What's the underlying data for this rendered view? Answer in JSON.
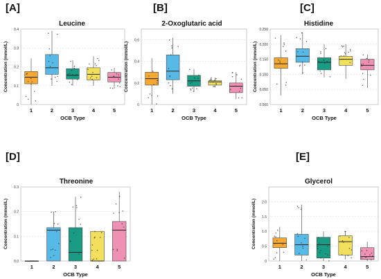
{
  "panels": [
    {
      "label": "[A]",
      "title": "Leucine"
    },
    {
      "label": "[B]",
      "title": "2-Oxoglutaric acid"
    },
    {
      "label": "[C]",
      "title": "Histidine"
    },
    {
      "label": "[D]",
      "title": "Threonine"
    },
    {
      "label": "[E]",
      "title": "Glycerol"
    }
  ],
  "chart_data": [
    {
      "type": "box",
      "title": "Leucine",
      "xlabel": "OCB Type",
      "ylabel": "Concentration (mmol/L)",
      "categories": [
        "1",
        "2",
        "3",
        "4",
        "5"
      ],
      "ylim": [
        0,
        0.4
      ],
      "yticks": [
        0,
        0.1,
        0.2,
        0.3,
        0.4
      ],
      "ytick_labels": [
        "0",
        "0.1",
        "0.2",
        "0.3",
        "0.4"
      ],
      "boxes": [
        {
          "q1": 0.11,
          "median": 0.145,
          "q3": 0.175,
          "whisker_low": 0.0,
          "whisker_high": 0.245
        },
        {
          "q1": 0.16,
          "median": 0.195,
          "q3": 0.265,
          "whisker_low": 0.1,
          "whisker_high": 0.39
        },
        {
          "q1": 0.135,
          "median": 0.155,
          "q3": 0.19,
          "whisker_low": 0.1,
          "whisker_high": 0.235
        },
        {
          "q1": 0.13,
          "median": 0.16,
          "q3": 0.195,
          "whisker_low": 0.1,
          "whisker_high": 0.255
        },
        {
          "q1": 0.12,
          "median": 0.145,
          "q3": 0.17,
          "whisker_low": 0.085,
          "whisker_high": 0.195
        }
      ],
      "colors": [
        "#f5a933",
        "#57b9e6",
        "#1a9b83",
        "#f2e05c",
        "#ef90b5"
      ]
    },
    {
      "type": "box",
      "title": "2-Oxoglutaric acid",
      "xlabel": "OCB Type",
      "ylabel": "Concentration (mmol/L)",
      "categories": [
        "1",
        "2",
        "3",
        "4",
        "5"
      ],
      "ylim": [
        0,
        0.7
      ],
      "yticks": [
        0,
        0.2,
        0.4,
        0.6
      ],
      "ytick_labels": [
        "0",
        "0.2",
        "0.4",
        "0.6"
      ],
      "boxes": [
        {
          "q1": 0.18,
          "median": 0.24,
          "q3": 0.3,
          "whisker_low": 0.0,
          "whisker_high": 0.43
        },
        {
          "q1": 0.23,
          "median": 0.31,
          "q3": 0.46,
          "whisker_low": 0.1,
          "whisker_high": 0.62
        },
        {
          "q1": 0.17,
          "median": 0.22,
          "q3": 0.27,
          "whisker_low": 0.12,
          "whisker_high": 0.33
        },
        {
          "q1": 0.18,
          "median": 0.21,
          "q3": 0.22,
          "whisker_low": 0.16,
          "whisker_high": 0.25
        },
        {
          "q1": 0.11,
          "median": 0.17,
          "q3": 0.2,
          "whisker_low": 0.05,
          "whisker_high": 0.3
        }
      ],
      "colors": [
        "#f5a933",
        "#57b9e6",
        "#1a9b83",
        "#f2e05c",
        "#ef90b5"
      ]
    },
    {
      "type": "box",
      "title": "Histidine",
      "xlabel": "OCB Type",
      "ylabel": "Concentration (mmol/L)",
      "categories": [
        "1",
        "2",
        "3",
        "4",
        "5"
      ],
      "ylim": [
        0,
        0.25
      ],
      "yticks": [
        0,
        0.05,
        0.1,
        0.15,
        0.2,
        0.25
      ],
      "ytick_labels": [
        "0.000",
        "0.050",
        "0.100",
        "0.150",
        "0.200",
        "0.250"
      ],
      "boxes": [
        {
          "q1": 0.12,
          "median": 0.135,
          "q3": 0.155,
          "whisker_low": 0.03,
          "whisker_high": 0.23
        },
        {
          "q1": 0.14,
          "median": 0.16,
          "q3": 0.185,
          "whisker_low": 0.1,
          "whisker_high": 0.24
        },
        {
          "q1": 0.115,
          "median": 0.14,
          "q3": 0.155,
          "whisker_low": 0.09,
          "whisker_high": 0.2
        },
        {
          "q1": 0.13,
          "median": 0.15,
          "q3": 0.16,
          "whisker_low": 0.085,
          "whisker_high": 0.2
        },
        {
          "q1": 0.115,
          "median": 0.13,
          "q3": 0.15,
          "whisker_low": 0.055,
          "whisker_high": 0.165
        }
      ],
      "colors": [
        "#f5a933",
        "#57b9e6",
        "#1a9b83",
        "#f2e05c",
        "#ef90b5"
      ]
    },
    {
      "type": "box",
      "title": "Threonine",
      "xlabel": "OCB Type",
      "ylabel": "Concentration (mmol/L)",
      "categories": [
        "1",
        "2",
        "3",
        "4",
        "5"
      ],
      "ylim": [
        0,
        0.3
      ],
      "yticks": [
        0,
        0.1,
        0.2,
        0.3
      ],
      "ytick_labels": [
        "0.0",
        "0.1",
        "0.2",
        "0.3"
      ],
      "boxes": [
        {
          "q1": 0.0,
          "median": 0.0,
          "q3": 0.0,
          "whisker_low": 0.0,
          "whisker_high": 0.0
        },
        {
          "q1": 0.0,
          "median": 0.125,
          "q3": 0.135,
          "whisker_low": 0.0,
          "whisker_high": 0.2
        },
        {
          "q1": 0.0,
          "median": 0.035,
          "q3": 0.135,
          "whisker_low": 0.0,
          "whisker_high": 0.26
        },
        {
          "q1": 0.0,
          "median": 0.0,
          "q3": 0.12,
          "whisker_low": 0.0,
          "whisker_high": 0.12
        },
        {
          "q1": 0.0,
          "median": 0.125,
          "q3": 0.16,
          "whisker_low": 0.0,
          "whisker_high": 0.28
        }
      ],
      "colors": [
        "#f5a933",
        "#57b9e6",
        "#1a9b83",
        "#f2e05c",
        "#ef90b5"
      ]
    },
    {
      "type": "box",
      "title": "Glycerol",
      "xlabel": "OCB Type",
      "ylabel": "Concentration (mmol/L)",
      "categories": [
        "1",
        "2",
        "3",
        "4",
        "5"
      ],
      "ylim": [
        0,
        2.5
      ],
      "yticks": [
        0,
        0.5,
        1.0,
        1.5,
        2.0
      ],
      "ytick_labels": [
        "0",
        "0.5",
        "1.0",
        "1.5",
        "2.0"
      ],
      "boxes": [
        {
          "q1": 0.45,
          "median": 0.6,
          "q3": 0.78,
          "whisker_low": 0.0,
          "whisker_high": 1.15
        },
        {
          "q1": 0.2,
          "median": 0.55,
          "q3": 0.9,
          "whisker_low": 0.0,
          "whisker_high": 1.9
        },
        {
          "q1": 0.1,
          "median": 0.55,
          "q3": 0.8,
          "whisker_low": 0.0,
          "whisker_high": 1.0
        },
        {
          "q1": 0.2,
          "median": 0.65,
          "q3": 0.85,
          "whisker_low": 0.05,
          "whisker_high": 1.0
        },
        {
          "q1": 0.05,
          "median": 0.15,
          "q3": 0.45,
          "whisker_low": 0.0,
          "whisker_high": 0.65
        }
      ],
      "colors": [
        "#f5a933",
        "#57b9e6",
        "#1a9b83",
        "#f2e05c",
        "#ef90b5"
      ]
    }
  ]
}
